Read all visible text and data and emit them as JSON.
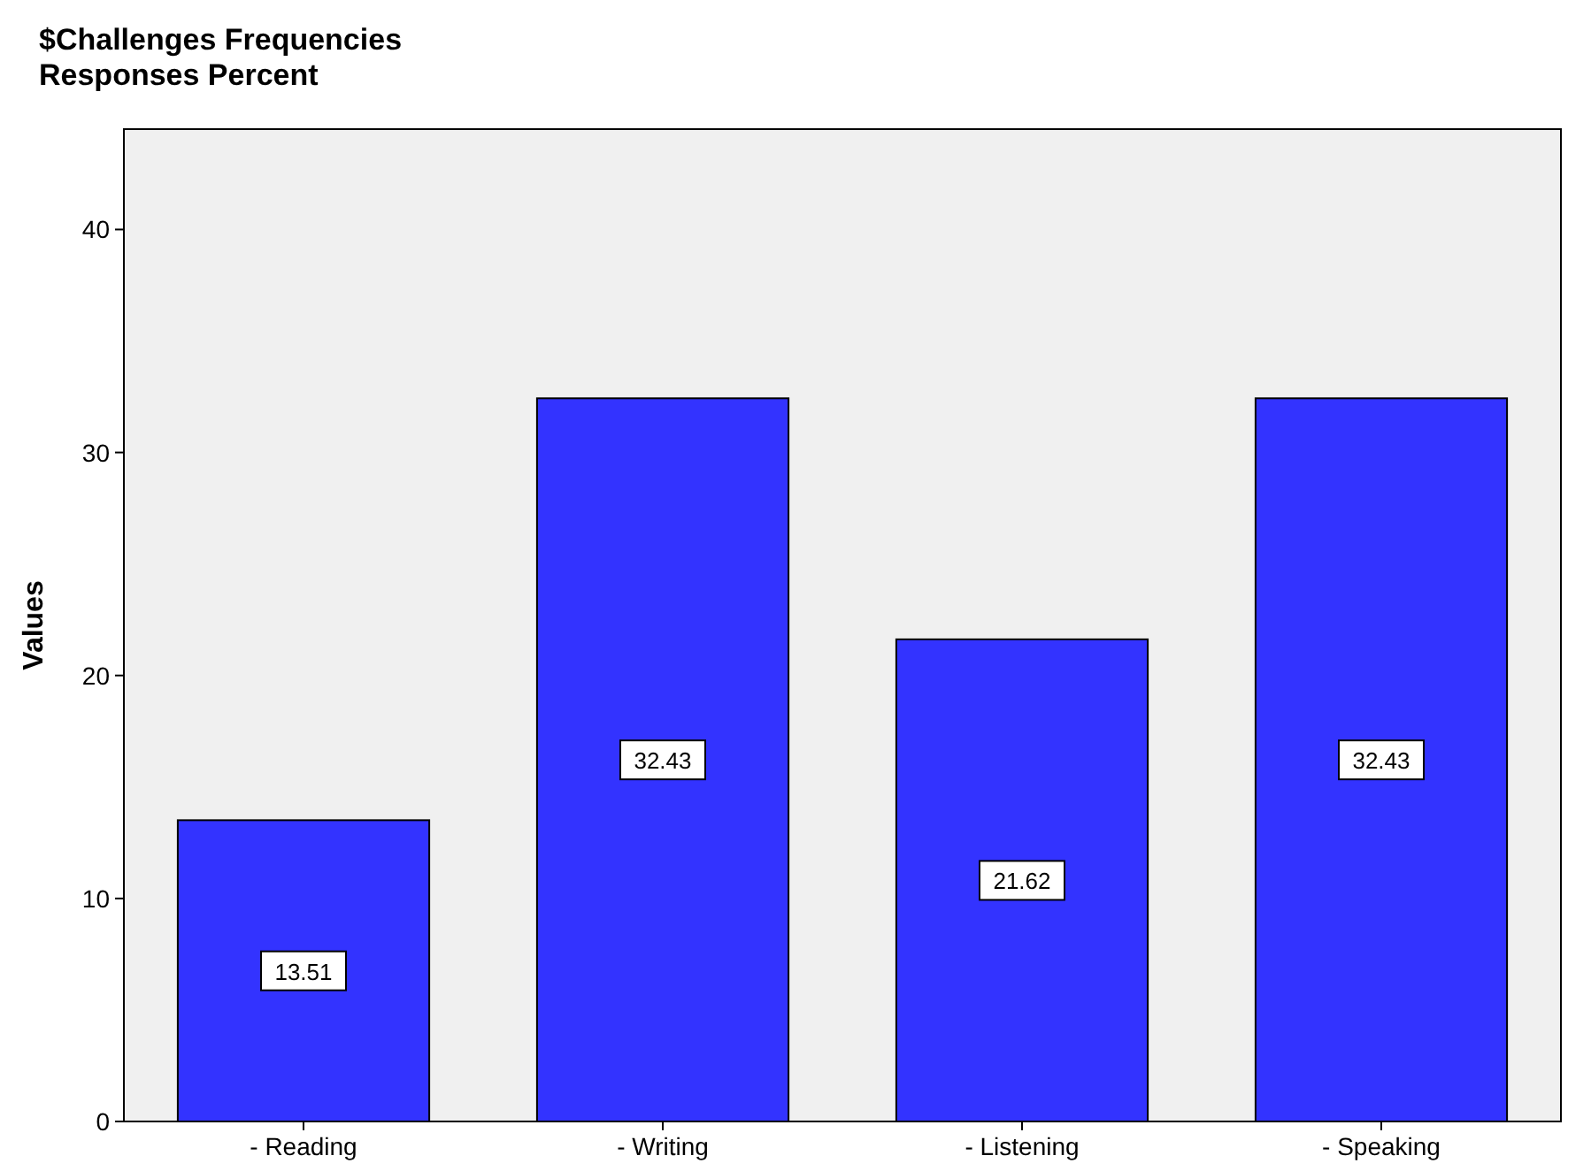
{
  "chart_data": {
    "type": "bar",
    "title": "$Challenges Frequencies",
    "subtitle": "Responses Percent",
    "ylabel": "Values",
    "categories": [
      "- Reading",
      "- Writing",
      "- Listening",
      "- Speaking"
    ],
    "values": [
      13.51,
      32.43,
      21.62,
      32.43
    ],
    "color": "#3333ff",
    "ylim": [
      0,
      44.5
    ],
    "yticks": [
      0,
      10,
      20,
      30,
      40
    ],
    "grid": false,
    "data_labels": true
  }
}
